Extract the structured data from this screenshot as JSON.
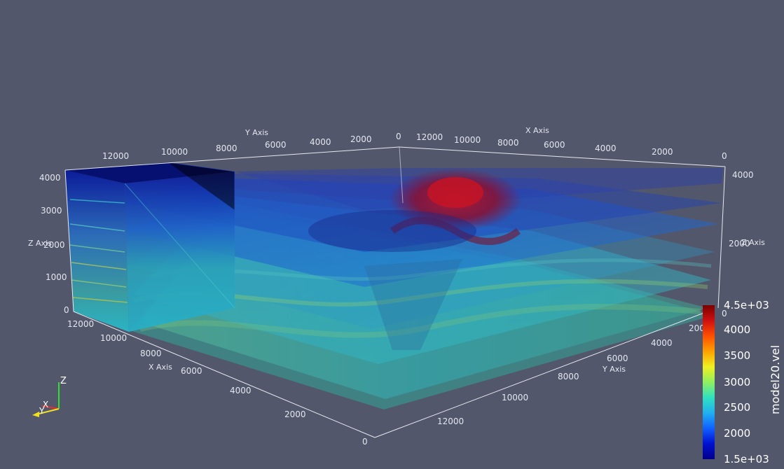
{
  "axes": {
    "y_top": {
      "title": "Y Axis",
      "ticks": [
        "12000",
        "10000",
        "8000",
        "6000",
        "4000",
        "2000",
        "0"
      ]
    },
    "x_top": {
      "title": "X Axis",
      "ticks": [
        "12000",
        "10000",
        "8000",
        "6000",
        "4000",
        "2000",
        "0"
      ]
    },
    "z_left": {
      "title": "Z Axis",
      "ticks": [
        "4000",
        "3000",
        "2000",
        "1000",
        "0"
      ]
    },
    "z_right": {
      "title": "Z Axis",
      "ticks": [
        "4000",
        "2000",
        "0"
      ]
    },
    "x_bottom": {
      "title": "X Axis",
      "ticks": [
        "12000",
        "10000",
        "8000",
        "6000",
        "4000",
        "2000",
        "0"
      ]
    },
    "y_bottom": {
      "title": "Y Axis",
      "ticks": [
        "2000",
        "4000",
        "6000",
        "8000",
        "10000",
        "12000"
      ]
    }
  },
  "colorbar": {
    "title": "model20.vel",
    "max_label": "4.5e+03",
    "min_label": "1.5e+03",
    "ticks": [
      "4000",
      "3500",
      "3000",
      "2500",
      "2000"
    ],
    "colors": [
      "#7a0000",
      "#d01010",
      "#ff5000",
      "#ffa000",
      "#f0f020",
      "#90f060",
      "#30e0c0",
      "#20b0f0",
      "#1060ff",
      "#0010d0",
      "#00008a"
    ]
  },
  "orientation": {
    "z": "Z",
    "x": "X",
    "y": "Y"
  },
  "colors": {
    "background": "#52576b",
    "axis_line": "#e8e8ee"
  }
}
